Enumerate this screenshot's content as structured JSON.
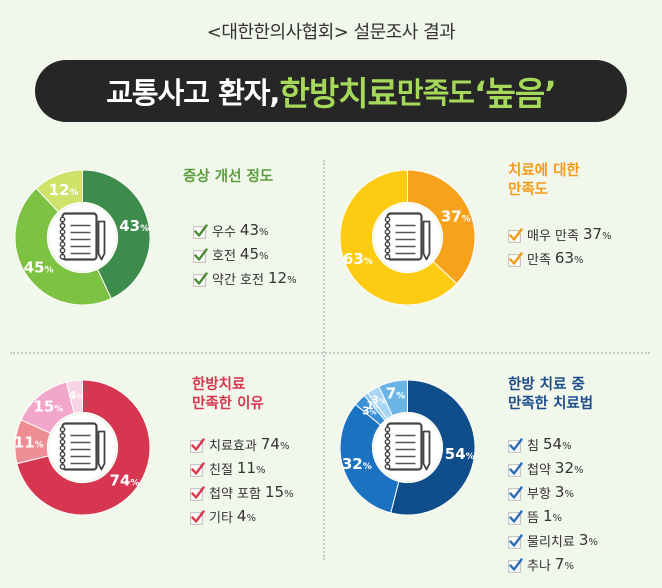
{
  "header": {
    "subtitle": "<대한한의사협회> 설문조사 결과",
    "headline_part1": "교통사고 환자, ",
    "headline_part2": "한방치료",
    "headline_part3": " 만족도 ",
    "headline_part4": "‘높음’"
  },
  "colors": {
    "background": "#f2f7ec",
    "banner": "#262626",
    "banner_accent": "#a6d95a"
  },
  "chart_data": [
    {
      "type": "pie",
      "title": "증상 개선 정도",
      "title_color": "#5a9d3a",
      "check_color": "#4c8b2f",
      "categories": [
        "우수",
        "호전",
        "약간 호전"
      ],
      "values": [
        43,
        45,
        12
      ],
      "colors": [
        "#3d8c4c",
        "#7dc242",
        "#cfe26a"
      ],
      "slice_labels": [
        "43",
        "45",
        "12"
      ],
      "legend_values": [
        "43",
        "45",
        "12"
      ],
      "unit": "%"
    },
    {
      "type": "pie",
      "title": "치료에 대한 만족도",
      "title_lines": [
        "치료에 대한",
        "만족도"
      ],
      "title_color": "#f39a19",
      "check_color": "#f39a19",
      "categories": [
        "매우 만족",
        "만족"
      ],
      "values": [
        37,
        63
      ],
      "colors": [
        "#f7a21b",
        "#fccb12"
      ],
      "slice_labels": [
        "37",
        "63"
      ],
      "legend_values": [
        "37",
        "63"
      ],
      "unit": "%"
    },
    {
      "type": "pie",
      "title": "한방치료 만족한 이유",
      "title_lines": [
        "한방치료",
        "만족한 이유"
      ],
      "title_color": "#d8364f",
      "check_color": "#d8364f",
      "categories": [
        "치료효과",
        "친절",
        "첩약 포함",
        "기타"
      ],
      "values": [
        74,
        11,
        15,
        4
      ],
      "colors": [
        "#d6364f",
        "#ef8d94",
        "#f2a6c9",
        "#f8d3e4"
      ],
      "slice_labels": [
        "74",
        "11",
        "15",
        "4"
      ],
      "legend_values": [
        "74",
        "11",
        "15",
        "4"
      ],
      "unit": "%"
    },
    {
      "type": "pie",
      "title": "한방 치료 중 만족한 치료법",
      "title_lines": [
        "한방 치료 중",
        "만족한 치료법"
      ],
      "title_color": "#1e4e8c",
      "check_color": "#2a6db8",
      "categories": [
        "침",
        "첩약",
        "부항",
        "뜸",
        "물리치료",
        "추나"
      ],
      "values": [
        54,
        32,
        3,
        1,
        3,
        7
      ],
      "colors": [
        "#0f4e8b",
        "#1a72c0",
        "#3b8fd5",
        "#8cc6ec",
        "#a9d6f2",
        "#6bb5e4"
      ],
      "slice_labels": [
        "54",
        "32",
        "3",
        "1",
        "3",
        "7"
      ],
      "legend_values": [
        "54",
        "32",
        "3",
        "1",
        "3",
        "7"
      ],
      "unit": "%"
    }
  ]
}
